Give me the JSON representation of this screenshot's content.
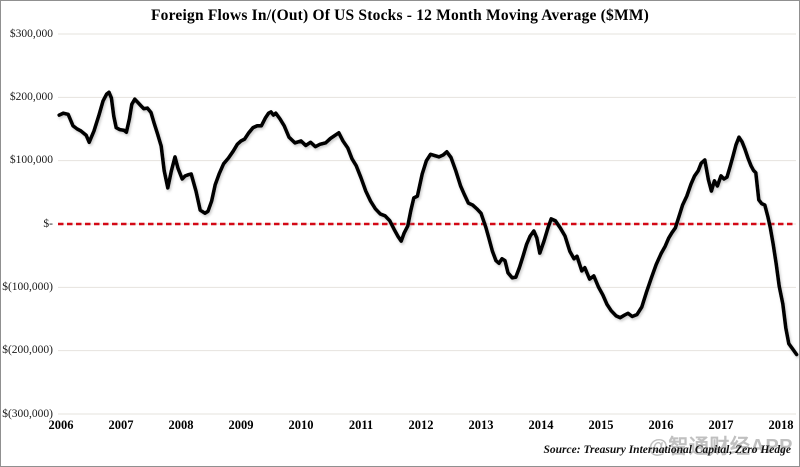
{
  "chart_data": {
    "type": "line",
    "title": "Foreign Flows In/(Out) Of US Stocks  - 12 Month Moving Average ($MM)",
    "source_note": "Source: Treasury International Capital, Zero Hedge",
    "watermark": "@智通财经APP",
    "xlabel": "",
    "ylabel": "",
    "x_range": [
      2005.9,
      2018.35
    ],
    "ylim": [
      -300000,
      300000
    ],
    "grid": "horizontal",
    "legend": "none",
    "line_color": "#000000",
    "grid_color": "#e6e3de",
    "zero_line": {
      "value": 0,
      "color": "#d30815",
      "style": "dashed"
    },
    "x_ticks": [
      "2006",
      "2007",
      "2008",
      "2009",
      "2010",
      "2011",
      "2012",
      "2013",
      "2014",
      "2015",
      "2016",
      "2017",
      "2018"
    ],
    "y_ticks": [
      {
        "label": "$300,000",
        "value": 300000
      },
      {
        "label": "$200,000",
        "value": 200000
      },
      {
        "label": "$100,000",
        "value": 100000
      },
      {
        "label": "$-",
        "value": 0
      },
      {
        "label": "$(100,000)",
        "value": -100000
      },
      {
        "label": "$(200,000)",
        "value": -200000
      },
      {
        "label": "$(300,000)",
        "value": -300000
      }
    ],
    "series": [
      {
        "name": "Foreign Flows In/(Out) of US Stocks, 12-Month Moving Average ($MM)",
        "points": [
          [
            2005.97,
            172000
          ],
          [
            2006.04,
            175000
          ],
          [
            2006.12,
            173000
          ],
          [
            2006.2,
            155000
          ],
          [
            2006.27,
            150000
          ],
          [
            2006.33,
            147000
          ],
          [
            2006.42,
            140000
          ],
          [
            2006.47,
            129000
          ],
          [
            2006.55,
            147000
          ],
          [
            2006.63,
            171000
          ],
          [
            2006.7,
            194000
          ],
          [
            2006.76,
            205000
          ],
          [
            2006.8,
            208000
          ],
          [
            2006.84,
            199000
          ],
          [
            2006.88,
            170000
          ],
          [
            2006.92,
            152000
          ],
          [
            2006.98,
            149000
          ],
          [
            2007.05,
            148000
          ],
          [
            2007.09,
            145000
          ],
          [
            2007.14,
            166000
          ],
          [
            2007.18,
            189000
          ],
          [
            2007.23,
            197000
          ],
          [
            2007.28,
            192000
          ],
          [
            2007.33,
            187000
          ],
          [
            2007.38,
            182000
          ],
          [
            2007.44,
            183000
          ],
          [
            2007.5,
            176000
          ],
          [
            2007.55,
            160000
          ],
          [
            2007.61,
            142000
          ],
          [
            2007.67,
            123000
          ],
          [
            2007.72,
            84000
          ],
          [
            2007.78,
            57000
          ],
          [
            2007.84,
            84000
          ],
          [
            2007.9,
            106000
          ],
          [
            2007.95,
            88000
          ],
          [
            2008.02,
            71000
          ],
          [
            2008.07,
            76000
          ],
          [
            2008.13,
            78000
          ],
          [
            2008.17,
            79000
          ],
          [
            2008.25,
            52000
          ],
          [
            2008.32,
            22000
          ],
          [
            2008.4,
            17000
          ],
          [
            2008.45,
            20000
          ],
          [
            2008.51,
            36000
          ],
          [
            2008.57,
            62000
          ],
          [
            2008.64,
            80000
          ],
          [
            2008.71,
            95000
          ],
          [
            2008.79,
            104000
          ],
          [
            2008.87,
            115000
          ],
          [
            2008.94,
            126000
          ],
          [
            2009.0,
            131000
          ],
          [
            2009.06,
            134000
          ],
          [
            2009.13,
            144000
          ],
          [
            2009.2,
            152000
          ],
          [
            2009.27,
            155000
          ],
          [
            2009.34,
            155000
          ],
          [
            2009.41,
            168000
          ],
          [
            2009.46,
            175000
          ],
          [
            2009.5,
            177000
          ],
          [
            2009.54,
            172000
          ],
          [
            2009.58,
            175000
          ],
          [
            2009.65,
            166000
          ],
          [
            2009.72,
            155000
          ],
          [
            2009.8,
            137000
          ],
          [
            2009.9,
            128000
          ],
          [
            2010.0,
            131000
          ],
          [
            2010.08,
            124000
          ],
          [
            2010.16,
            129000
          ],
          [
            2010.24,
            122000
          ],
          [
            2010.32,
            126000
          ],
          [
            2010.41,
            128000
          ],
          [
            2010.49,
            135000
          ],
          [
            2010.57,
            140000
          ],
          [
            2010.63,
            144000
          ],
          [
            2010.7,
            131000
          ],
          [
            2010.78,
            120000
          ],
          [
            2010.85,
            103000
          ],
          [
            2010.92,
            92000
          ],
          [
            2011.0,
            73000
          ],
          [
            2011.08,
            52000
          ],
          [
            2011.16,
            36000
          ],
          [
            2011.24,
            24000
          ],
          [
            2011.32,
            16000
          ],
          [
            2011.4,
            13000
          ],
          [
            2011.48,
            5000
          ],
          [
            2011.55,
            -8000
          ],
          [
            2011.62,
            -20000
          ],
          [
            2011.67,
            -27000
          ],
          [
            2011.72,
            -14000
          ],
          [
            2011.78,
            -3000
          ],
          [
            2011.83,
            21000
          ],
          [
            2011.88,
            41000
          ],
          [
            2011.94,
            44000
          ],
          [
            2012.02,
            79000
          ],
          [
            2012.09,
            100000
          ],
          [
            2012.16,
            110000
          ],
          [
            2012.23,
            108000
          ],
          [
            2012.3,
            106000
          ],
          [
            2012.37,
            109000
          ],
          [
            2012.43,
            114000
          ],
          [
            2012.5,
            105000
          ],
          [
            2012.58,
            84000
          ],
          [
            2012.66,
            60000
          ],
          [
            2012.72,
            47000
          ],
          [
            2012.79,
            33000
          ],
          [
            2012.86,
            30000
          ],
          [
            2012.93,
            24000
          ],
          [
            2013.0,
            17000
          ],
          [
            2013.08,
            -5000
          ],
          [
            2013.13,
            -22000
          ],
          [
            2013.19,
            -43000
          ],
          [
            2013.25,
            -58000
          ],
          [
            2013.3,
            -62000
          ],
          [
            2013.35,
            -55000
          ],
          [
            2013.4,
            -58000
          ],
          [
            2013.45,
            -77000
          ],
          [
            2013.52,
            -85000
          ],
          [
            2013.58,
            -84000
          ],
          [
            2013.64,
            -69000
          ],
          [
            2013.7,
            -51000
          ],
          [
            2013.76,
            -32000
          ],
          [
            2013.82,
            -19000
          ],
          [
            2013.88,
            -11000
          ],
          [
            2013.93,
            -22000
          ],
          [
            2013.98,
            -46000
          ],
          [
            2014.05,
            -27000
          ],
          [
            2014.12,
            -5000
          ],
          [
            2014.17,
            8000
          ],
          [
            2014.24,
            5000
          ],
          [
            2014.32,
            -6000
          ],
          [
            2014.4,
            -19000
          ],
          [
            2014.48,
            -43000
          ],
          [
            2014.55,
            -55000
          ],
          [
            2014.6,
            -51000
          ],
          [
            2014.68,
            -74000
          ],
          [
            2014.73,
            -69000
          ],
          [
            2014.81,
            -87000
          ],
          [
            2014.88,
            -82000
          ],
          [
            2014.96,
            -100000
          ],
          [
            2015.03,
            -112000
          ],
          [
            2015.1,
            -127000
          ],
          [
            2015.17,
            -137000
          ],
          [
            2015.25,
            -145000
          ],
          [
            2015.32,
            -148000
          ],
          [
            2015.39,
            -144000
          ],
          [
            2015.45,
            -141000
          ],
          [
            2015.52,
            -146000
          ],
          [
            2015.6,
            -143000
          ],
          [
            2015.68,
            -131000
          ],
          [
            2015.76,
            -107000
          ],
          [
            2015.84,
            -85000
          ],
          [
            2015.92,
            -64000
          ],
          [
            2016.0,
            -47000
          ],
          [
            2016.07,
            -35000
          ],
          [
            2016.13,
            -22000
          ],
          [
            2016.18,
            -14000
          ],
          [
            2016.24,
            -6000
          ],
          [
            2016.3,
            12000
          ],
          [
            2016.36,
            30000
          ],
          [
            2016.43,
            44000
          ],
          [
            2016.5,
            63000
          ],
          [
            2016.56,
            76000
          ],
          [
            2016.62,
            84000
          ],
          [
            2016.67,
            96000
          ],
          [
            2016.73,
            101000
          ],
          [
            2016.79,
            70000
          ],
          [
            2016.84,
            52000
          ],
          [
            2016.89,
            68000
          ],
          [
            2016.94,
            60000
          ],
          [
            2017.0,
            76000
          ],
          [
            2017.05,
            71000
          ],
          [
            2017.1,
            74000
          ],
          [
            2017.15,
            90000
          ],
          [
            2017.2,
            107000
          ],
          [
            2017.25,
            125000
          ],
          [
            2017.3,
            137000
          ],
          [
            2017.35,
            130000
          ],
          [
            2017.4,
            118000
          ],
          [
            2017.45,
            104000
          ],
          [
            2017.5,
            92000
          ],
          [
            2017.54,
            85000
          ],
          [
            2017.58,
            81000
          ],
          [
            2017.63,
            38000
          ],
          [
            2017.68,
            32000
          ],
          [
            2017.73,
            30000
          ],
          [
            2017.78,
            12000
          ],
          [
            2017.82,
            -5000
          ],
          [
            2017.87,
            -32000
          ],
          [
            2017.92,
            -63000
          ],
          [
            2017.97,
            -98000
          ],
          [
            2018.03,
            -126000
          ],
          [
            2018.08,
            -164000
          ],
          [
            2018.13,
            -189000
          ],
          [
            2018.2,
            -198000
          ],
          [
            2018.26,
            -206000
          ]
        ]
      }
    ]
  }
}
